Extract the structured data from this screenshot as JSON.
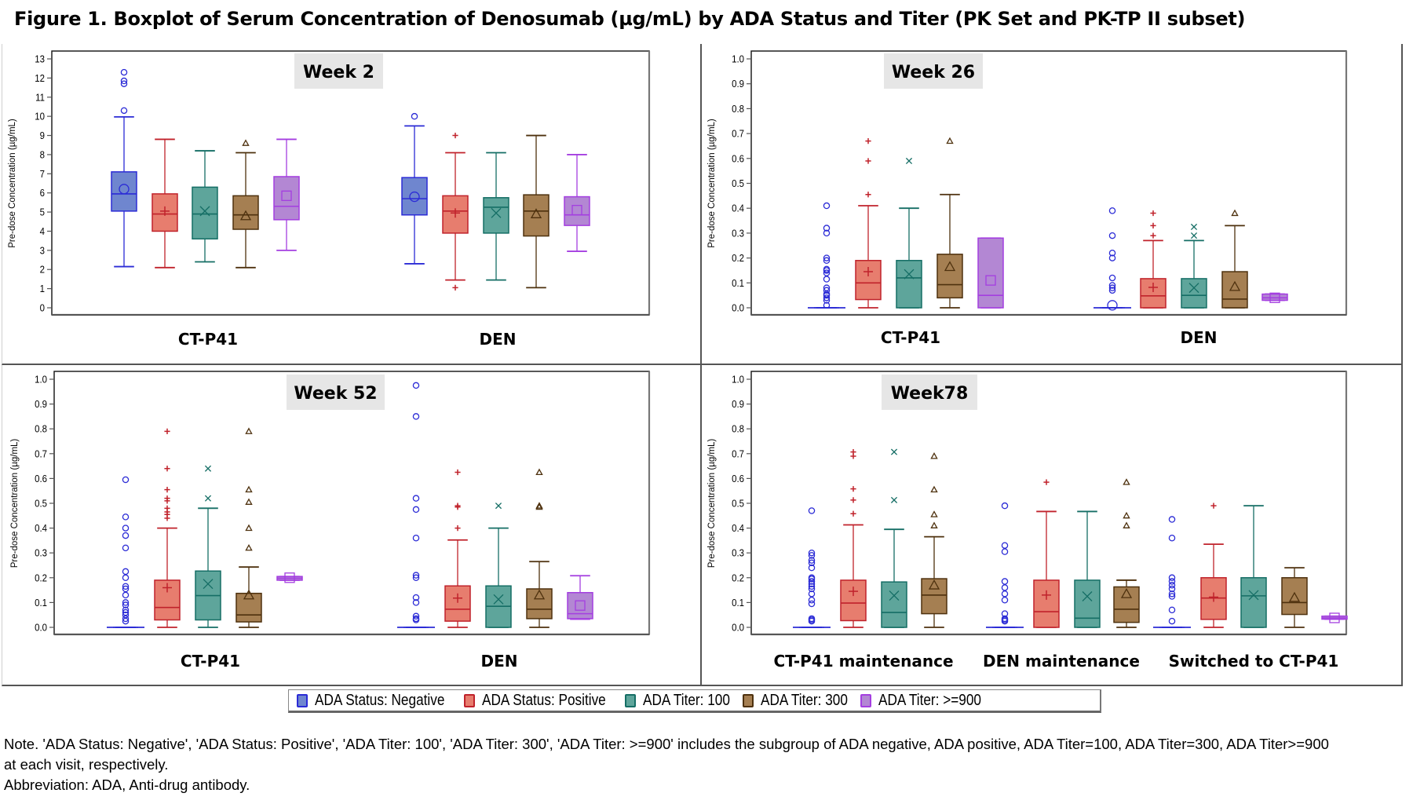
{
  "title": "Figure 1. Boxplot of Serum Concentration of Denosumab (µg/mL) by ADA Status and Titer (PK Set and PK-TP II subset)",
  "legend": [
    {
      "key": "neg",
      "label": "ADA Status: Negative",
      "stroke": "#2b2bd6",
      "fill": "#6f86cf",
      "marker": "circle"
    },
    {
      "key": "pos",
      "label": "ADA Status: Positive",
      "stroke": "#c0222b",
      "fill": "#e77d6e",
      "marker": "plus"
    },
    {
      "key": "t100",
      "label": "ADA Titer: 100",
      "stroke": "#156e65",
      "fill": "#5ea59b",
      "marker": "x"
    },
    {
      "key": "t300",
      "label": "ADA Titer: 300",
      "stroke": "#4e310e",
      "fill": "#a57f52",
      "marker": "triangle"
    },
    {
      "key": "t900",
      "label": "ADA Titer: >=900",
      "stroke": "#a43ee0",
      "fill": "#b387d3",
      "marker": "square"
    }
  ],
  "note": {
    "line1": "Note. 'ADA Status: Negative', 'ADA Status: Positive', 'ADA Titer: 100', 'ADA Titer: 300', 'ADA Titer: >=900' includes the subgroup of ADA negative, ADA positive, ADA Titer=100, ADA Titer=300, ADA Titer>=900",
    "line2": "at each visit, respectively.",
    "line3": "Abbreviation: ADA, Anti-drug antibody."
  },
  "chart_data": [
    {
      "type": "boxplot",
      "title": "Week 2",
      "ylabel": "Pre-dose Concentration (µg/mL)",
      "ylim": [
        0,
        13
      ],
      "yticks": [
        "0",
        "1",
        "2",
        "3",
        "4",
        "5",
        "6",
        "7",
        "8",
        "9",
        "10",
        "11",
        "12",
        "13"
      ],
      "ytick_values": [
        0,
        1,
        2,
        3,
        4,
        5,
        6,
        7,
        8,
        9,
        10,
        11,
        12,
        13
      ],
      "grid": false,
      "groups": [
        {
          "label": "CT-P41",
          "boxes": [
            {
              "series": "neg",
              "min": 2.15,
              "q1": 5.05,
              "median": 5.95,
              "q3": 7.1,
              "max": 9.97,
              "mean": 6.2,
              "outliers": [
                10.3,
                11.7,
                11.85,
                12.3
              ]
            },
            {
              "series": "pos",
              "min": 2.1,
              "q1": 4.0,
              "median": 4.9,
              "q3": 5.95,
              "max": 8.8,
              "mean": 5.05,
              "outliers": []
            },
            {
              "series": "t100",
              "min": 2.4,
              "q1": 3.6,
              "median": 4.9,
              "q3": 6.3,
              "max": 8.2,
              "mean": 5.05,
              "outliers": []
            },
            {
              "series": "t300",
              "min": 2.1,
              "q1": 4.1,
              "median": 4.85,
              "q3": 5.85,
              "max": 8.1,
              "mean": 4.8,
              "outliers": [
                8.6
              ]
            },
            {
              "series": "t900",
              "min": 3.0,
              "q1": 4.6,
              "median": 5.3,
              "q3": 6.85,
              "max": 8.8,
              "mean": 5.85,
              "outliers": []
            }
          ]
        },
        {
          "label": "DEN",
          "boxes": [
            {
              "series": "neg",
              "min": 2.3,
              "q1": 4.85,
              "median": 5.7,
              "q3": 6.8,
              "max": 9.5,
              "mean": 5.8,
              "outliers": [
                10.0
              ]
            },
            {
              "series": "pos",
              "min": 1.45,
              "q1": 3.9,
              "median": 5.05,
              "q3": 5.85,
              "max": 8.1,
              "mean": 4.95,
              "outliers": [
                1.05,
                9.0
              ]
            },
            {
              "series": "t100",
              "min": 1.45,
              "q1": 3.9,
              "median": 5.25,
              "q3": 5.75,
              "max": 8.1,
              "mean": 4.95,
              "outliers": []
            },
            {
              "series": "t300",
              "min": 1.05,
              "q1": 3.75,
              "median": 5.05,
              "q3": 5.9,
              "max": 9.0,
              "mean": 4.9,
              "outliers": []
            },
            {
              "series": "t900",
              "min": 2.95,
              "q1": 4.3,
              "median": 4.85,
              "q3": 5.8,
              "max": 8.0,
              "mean": 5.1,
              "outliers": []
            }
          ]
        }
      ]
    },
    {
      "type": "boxplot",
      "title": "Week 26",
      "ylabel": "Pre-dose Concentration (µg/mL)",
      "ylim": [
        0,
        1.0
      ],
      "yticks": [
        "0.0",
        "0.1",
        "0.2",
        "0.3",
        "0.4",
        "0.5",
        "0.6",
        "0.7",
        "0.8",
        "0.9",
        "1.0"
      ],
      "ytick_values": [
        0,
        0.1,
        0.2,
        0.3,
        0.4,
        0.5,
        0.6,
        0.7,
        0.8,
        0.9,
        1.0
      ],
      "grid": false,
      "groups": [
        {
          "label": "CT-P41",
          "boxes": [
            {
              "series": "neg",
              "min": 0,
              "q1": 0,
              "median": 0,
              "q3": 0,
              "max": 0,
              "mean": null,
              "outliers": [
                0.01,
                0.03,
                0.04,
                0.05,
                0.055,
                0.07,
                0.08,
                0.115,
                0.14,
                0.15,
                0.155,
                0.19,
                0.2,
                0.3,
                0.32,
                0.41
              ]
            },
            {
              "series": "pos",
              "min": 0,
              "q1": 0.033,
              "median": 0.1,
              "q3": 0.19,
              "max": 0.41,
              "mean": 0.145,
              "outliers": [
                0.455,
                0.59,
                0.67
              ]
            },
            {
              "series": "t100",
              "min": 0,
              "q1": 0,
              "median": 0.12,
              "q3": 0.19,
              "max": 0.4,
              "mean": 0.135,
              "outliers": [
                0.59
              ]
            },
            {
              "series": "t300",
              "min": 0,
              "q1": 0.04,
              "median": 0.093,
              "q3": 0.215,
              "max": 0.455,
              "mean": 0.165,
              "outliers": [
                0.67
              ]
            },
            {
              "series": "t900",
              "min": 0,
              "q1": 0,
              "median": 0.05,
              "q3": 0.28,
              "max": 0.28,
              "mean": 0.11,
              "outliers": []
            }
          ]
        },
        {
          "label": "DEN",
          "boxes": [
            {
              "series": "neg",
              "min": 0,
              "q1": 0,
              "median": 0,
              "q3": 0,
              "max": 0,
              "mean": 0.01,
              "outliers": [
                0.07,
                0.08,
                0.09,
                0.12,
                0.2,
                0.22,
                0.29,
                0.39
              ]
            },
            {
              "series": "pos",
              "min": 0,
              "q1": 0,
              "median": 0.048,
              "q3": 0.117,
              "max": 0.27,
              "mean": 0.082,
              "outliers": [
                0.29,
                0.33,
                0.38
              ]
            },
            {
              "series": "t100",
              "min": 0,
              "q1": 0,
              "median": 0.05,
              "q3": 0.117,
              "max": 0.27,
              "mean": 0.08,
              "outliers": [
                0.29,
                0.325
              ]
            },
            {
              "series": "t300",
              "min": 0,
              "q1": 0,
              "median": 0.035,
              "q3": 0.145,
              "max": 0.33,
              "mean": 0.085,
              "outliers": [
                0.38
              ]
            },
            {
              "series": "t900",
              "min": 0.03,
              "q1": 0.03,
              "median": 0.04,
              "q3": 0.055,
              "max": 0.055,
              "mean": 0.04,
              "outliers": []
            }
          ]
        }
      ]
    },
    {
      "type": "boxplot",
      "title": "Week 52",
      "ylabel": "Pre-dose Concentration (µg/mL)",
      "ylim": [
        0,
        1.0
      ],
      "yticks": [
        "0.0",
        "0.1",
        "0.2",
        "0.3",
        "0.4",
        "0.5",
        "0.6",
        "0.7",
        "0.8",
        "0.9",
        "1.0"
      ],
      "ytick_values": [
        0,
        0.1,
        0.2,
        0.3,
        0.4,
        0.5,
        0.6,
        0.7,
        0.8,
        0.9,
        1.0
      ],
      "grid": false,
      "groups": [
        {
          "label": "CT-P41",
          "boxes": [
            {
              "series": "neg",
              "min": 0,
              "q1": 0,
              "median": 0,
              "q3": 0,
              "max": 0,
              "mean": null,
              "outliers": [
                0.025,
                0.035,
                0.05,
                0.06,
                0.07,
                0.09,
                0.1,
                0.13,
                0.155,
                0.165,
                0.2,
                0.225,
                0.32,
                0.37,
                0.4,
                0.445,
                0.595
              ]
            },
            {
              "series": "pos",
              "min": 0,
              "q1": 0.03,
              "median": 0.08,
              "q3": 0.19,
              "max": 0.4,
              "mean": 0.16,
              "outliers": [
                0.44,
                0.455,
                0.465,
                0.48,
                0.51,
                0.52,
                0.555,
                0.64,
                0.79
              ]
            },
            {
              "series": "t100",
              "min": 0,
              "q1": 0.03,
              "median": 0.128,
              "q3": 0.227,
              "max": 0.48,
              "mean": 0.175,
              "outliers": [
                0.52,
                0.64
              ]
            },
            {
              "series": "t300",
              "min": 0,
              "q1": 0.022,
              "median": 0.05,
              "q3": 0.137,
              "max": 0.243,
              "mean": 0.13,
              "outliers": [
                0.32,
                0.4,
                0.505,
                0.555,
                0.79
              ]
            },
            {
              "series": "t900",
              "min": 0.19,
              "q1": 0.19,
              "median": 0.198,
              "q3": 0.205,
              "max": 0.205,
              "mean": 0.2,
              "outliers": []
            }
          ]
        },
        {
          "label": "DEN",
          "boxes": [
            {
              "series": "neg",
              "min": 0,
              "q1": 0,
              "median": 0,
              "q3": 0,
              "max": 0,
              "mean": null,
              "outliers": [
                0.03,
                0.035,
                0.045,
                0.1,
                0.12,
                0.2,
                0.21,
                0.36,
                0.475,
                0.52,
                0.85,
                0.975
              ]
            },
            {
              "series": "pos",
              "min": 0,
              "q1": 0.025,
              "median": 0.073,
              "q3": 0.167,
              "max": 0.352,
              "mean": 0.118,
              "outliers": [
                0.4,
                0.485,
                0.49,
                0.625
              ]
            },
            {
              "series": "t100",
              "min": 0,
              "q1": 0,
              "median": 0.085,
              "q3": 0.167,
              "max": 0.4,
              "mean": 0.113,
              "outliers": [
                0.49
              ]
            },
            {
              "series": "t300",
              "min": 0,
              "q1": 0.035,
              "median": 0.073,
              "q3": 0.155,
              "max": 0.265,
              "mean": 0.13,
              "outliers": [
                0.485,
                0.49,
                0.625
              ]
            },
            {
              "series": "t900",
              "min": 0.033,
              "q1": 0.035,
              "median": 0.055,
              "q3": 0.14,
              "max": 0.208,
              "mean": 0.088,
              "outliers": []
            }
          ]
        }
      ]
    },
    {
      "type": "boxplot",
      "title": "Week78",
      "ylabel": "Pre-dose Concentration (µg/mL)",
      "ylim": [
        0,
        1.0
      ],
      "yticks": [
        "0.0",
        "0.1",
        "0.2",
        "0.3",
        "0.4",
        "0.5",
        "0.6",
        "0.7",
        "0.8",
        "0.9",
        "1.0"
      ],
      "ytick_values": [
        0,
        0.1,
        0.2,
        0.3,
        0.4,
        0.5,
        0.6,
        0.7,
        0.8,
        0.9,
        1.0
      ],
      "grid": false,
      "groups": [
        {
          "label": "CT-P41 maintenance",
          "boxes": [
            {
              "series": "neg",
              "min": 0,
              "q1": 0,
              "median": 0,
              "q3": 0,
              "max": 0,
              "mean": null,
              "outliers": [
                0.025,
                0.03,
                0.035,
                0.095,
                0.11,
                0.135,
                0.155,
                0.165,
                0.175,
                0.185,
                0.195,
                0.2,
                0.24,
                0.26,
                0.27,
                0.29,
                0.3,
                0.47
              ]
            },
            {
              "series": "pos",
              "min": 0,
              "q1": 0.027,
              "median": 0.098,
              "q3": 0.19,
              "max": 0.413,
              "mean": 0.145,
              "outliers": [
                0.458,
                0.513,
                0.558,
                0.69,
                0.707
              ]
            },
            {
              "series": "t100",
              "min": 0,
              "q1": 0,
              "median": 0.06,
              "q3": 0.183,
              "max": 0.395,
              "mean": 0.128,
              "outliers": [
                0.513,
                0.707
              ]
            },
            {
              "series": "t300",
              "min": 0,
              "q1": 0.055,
              "median": 0.13,
              "q3": 0.196,
              "max": 0.365,
              "mean": 0.17,
              "outliers": [
                0.41,
                0.455,
                0.555,
                0.69
              ]
            }
          ]
        },
        {
          "label": "DEN maintenance",
          "boxes": [
            {
              "series": "neg",
              "min": 0,
              "q1": 0,
              "median": 0,
              "q3": 0,
              "max": 0,
              "mean": null,
              "outliers": [
                0.025,
                0.03,
                0.035,
                0.055,
                0.11,
                0.135,
                0.16,
                0.185,
                0.305,
                0.33,
                0.49
              ]
            },
            {
              "series": "pos",
              "min": 0,
              "q1": 0,
              "median": 0.063,
              "q3": 0.19,
              "max": 0.467,
              "mean": 0.13,
              "outliers": [
                0.585
              ]
            },
            {
              "series": "t100",
              "min": 0,
              "q1": 0,
              "median": 0.037,
              "q3": 0.19,
              "max": 0.467,
              "mean": 0.125,
              "outliers": []
            },
            {
              "series": "t300",
              "min": 0,
              "q1": 0.02,
              "median": 0.073,
              "q3": 0.163,
              "max": 0.19,
              "mean": 0.135,
              "outliers": [
                0.41,
                0.45,
                0.585
              ]
            }
          ]
        },
        {
          "label": "Switched to CT-P41",
          "boxes": [
            {
              "series": "neg",
              "min": 0,
              "q1": 0,
              "median": 0,
              "q3": 0,
              "max": 0,
              "mean": null,
              "outliers": [
                0.025,
                0.07,
                0.125,
                0.135,
                0.155,
                0.17,
                0.185,
                0.2,
                0.36,
                0.435
              ]
            },
            {
              "series": "pos",
              "min": 0,
              "q1": 0.032,
              "median": 0.118,
              "q3": 0.2,
              "max": 0.335,
              "mean": 0.122,
              "outliers": [
                0.49
              ]
            },
            {
              "series": "t100",
              "min": 0,
              "q1": 0,
              "median": 0.127,
              "q3": 0.2,
              "max": 0.49,
              "mean": 0.13,
              "outliers": []
            },
            {
              "series": "t300",
              "min": 0,
              "q1": 0.052,
              "median": 0.1,
              "q3": 0.2,
              "max": 0.24,
              "mean": 0.12,
              "outliers": []
            },
            {
              "series": "t900",
              "min": 0.033,
              "q1": 0.033,
              "median": 0.038,
              "q3": 0.045,
              "max": 0.045,
              "mean": 0.038,
              "outliers": []
            }
          ]
        }
      ]
    }
  ]
}
